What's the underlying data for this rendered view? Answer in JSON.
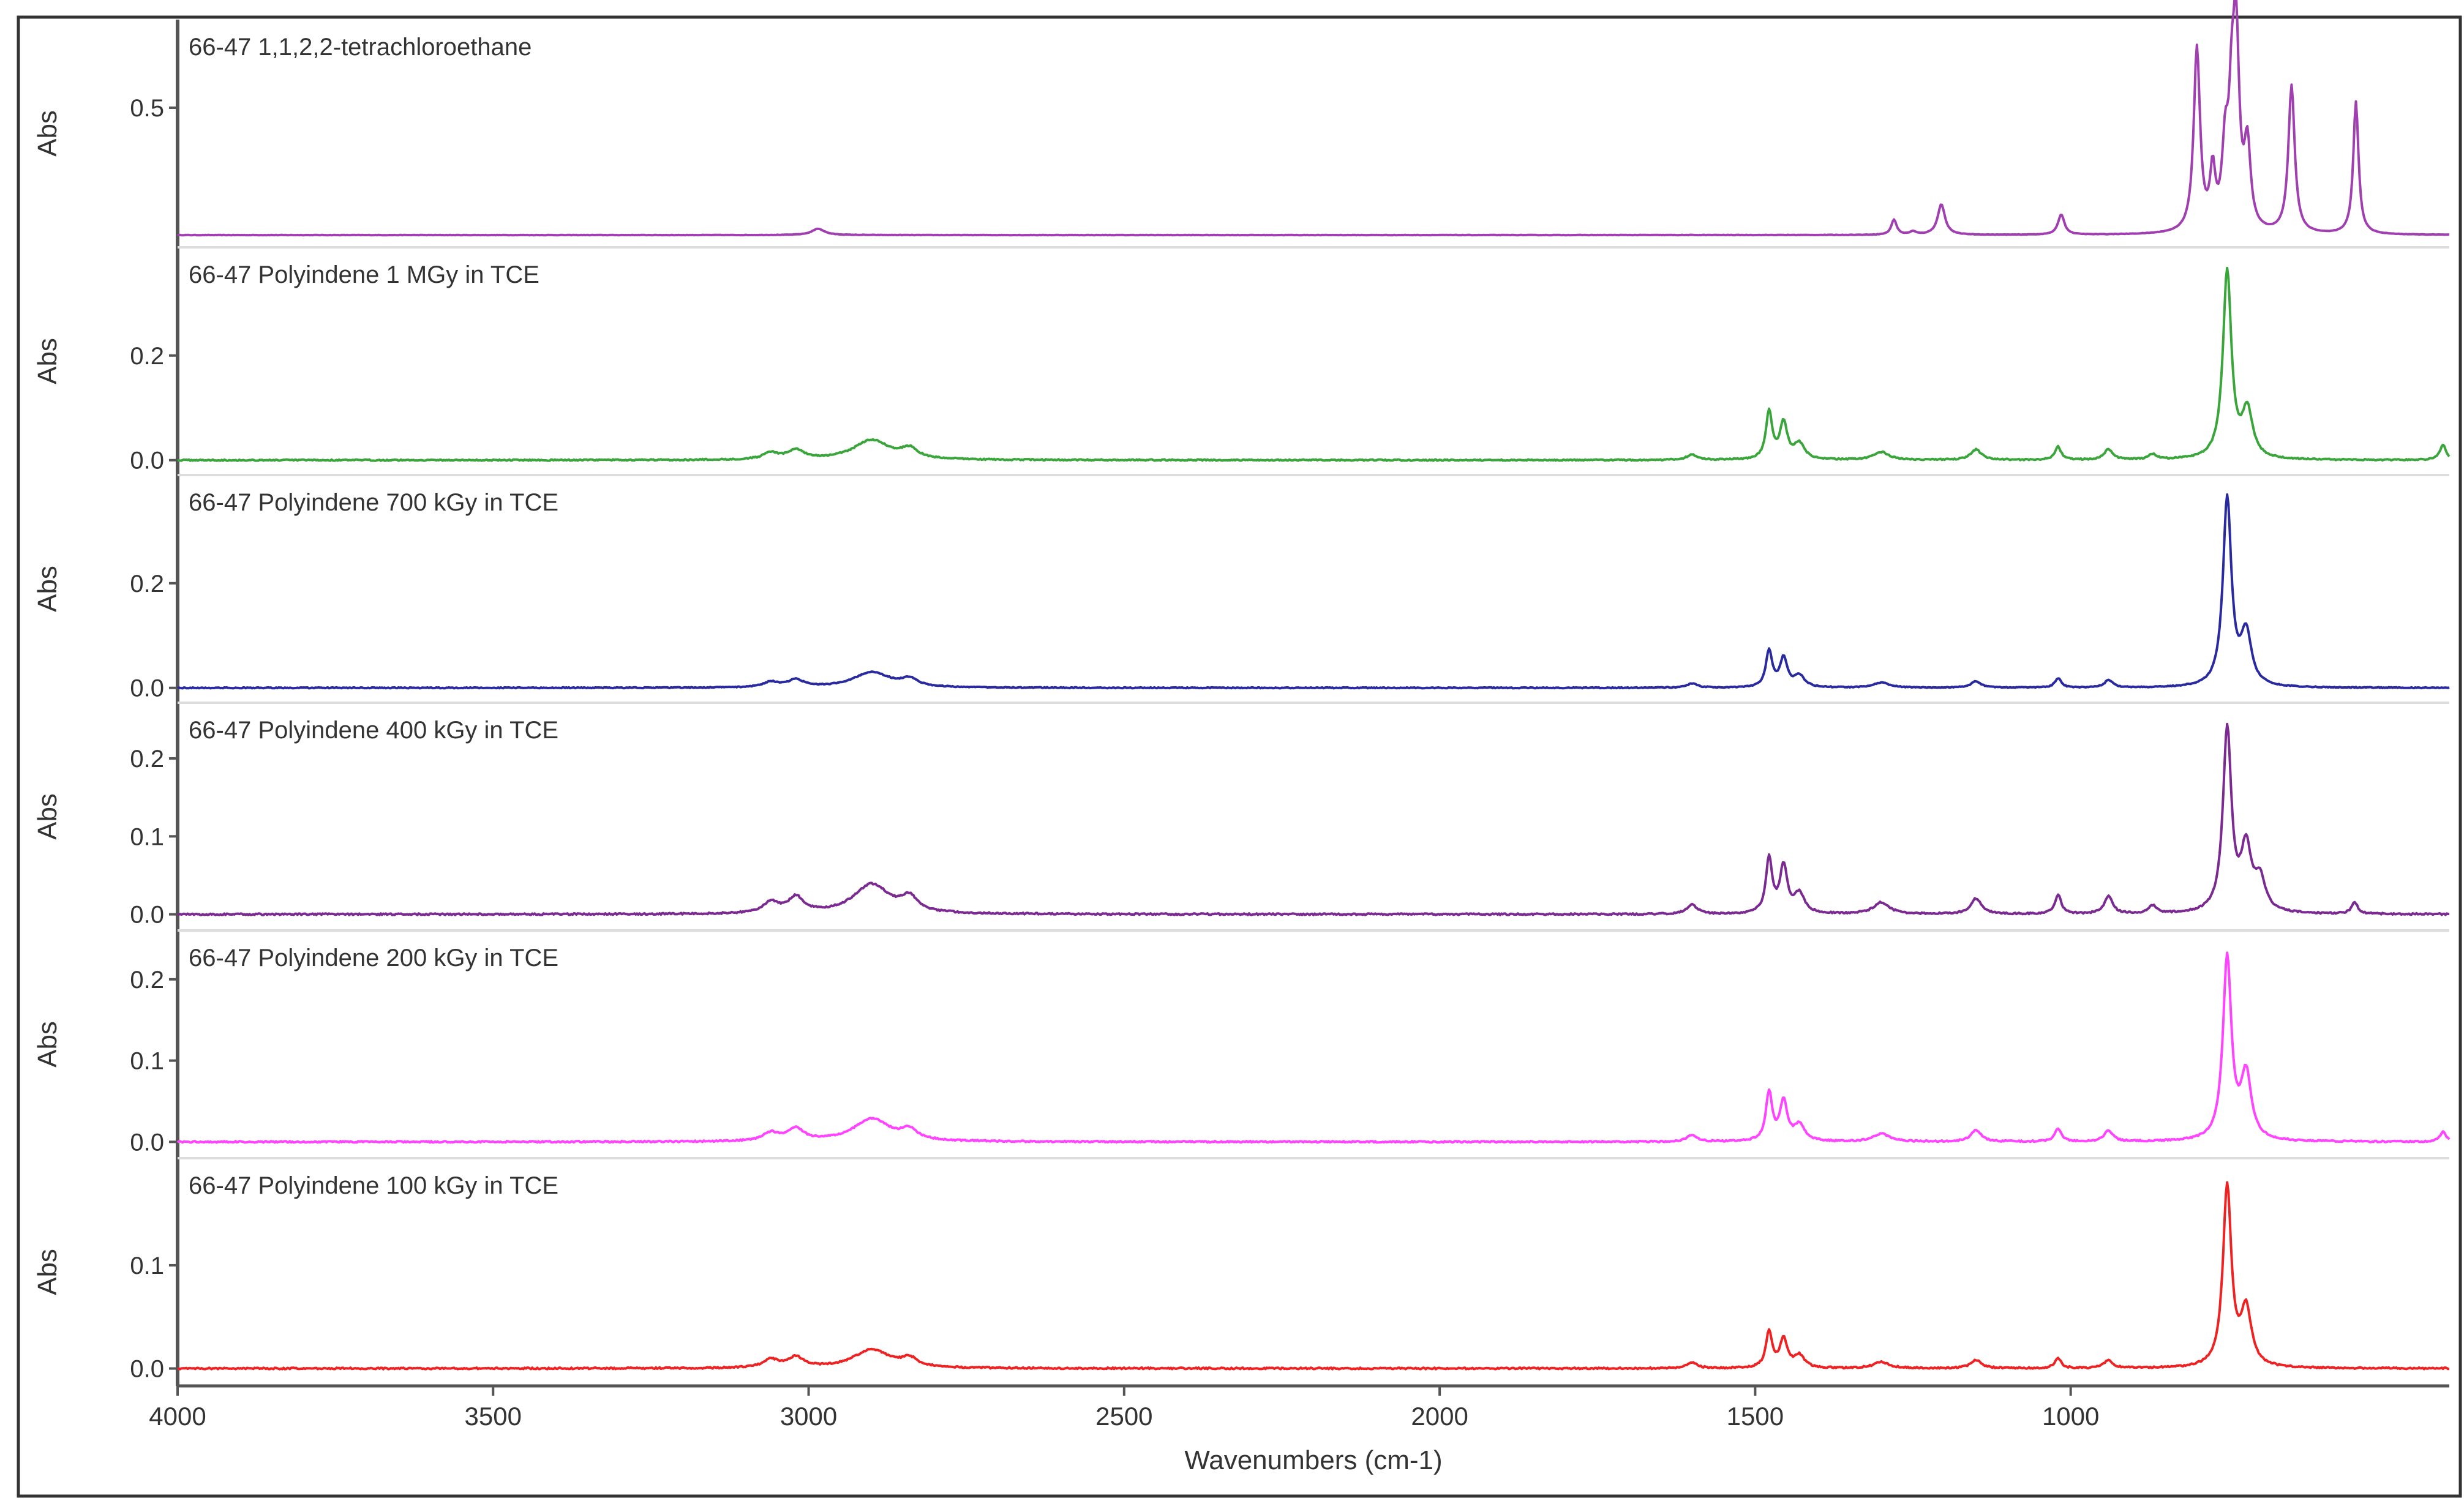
{
  "chart_data": {
    "type": "line",
    "xlabel": "Wavenumbers (cm-1)",
    "xlim": [
      4000,
      400
    ],
    "x_ticks": [
      4000,
      3500,
      3000,
      2500,
      2000,
      1500,
      1000
    ],
    "grid": false,
    "legend": "none",
    "panels": [
      {
        "title": "66-47 1,1,2,2-tetrachloroethane",
        "ylabel": "Abs",
        "color": "#a040b0",
        "ylim": [
          0,
          0.75
        ],
        "y_ticks": [
          0.5
        ],
        "baseline": 0.0,
        "noise": 0.0015,
        "peaks": [
          {
            "x": 2985,
            "height": 0.025,
            "width": 12
          },
          {
            "x": 1280,
            "height": 0.06,
            "width": 5
          },
          {
            "x": 1250,
            "height": 0.012,
            "width": 6
          },
          {
            "x": 1205,
            "height": 0.12,
            "width": 7
          },
          {
            "x": 1015,
            "height": 0.08,
            "width": 6
          },
          {
            "x": 800,
            "height": 0.72,
            "width": 6
          },
          {
            "x": 775,
            "height": 0.22,
            "width": 5
          },
          {
            "x": 755,
            "height": 0.3,
            "width": 6
          },
          {
            "x": 745,
            "height": 0.36,
            "width": 5
          },
          {
            "x": 738,
            "height": 0.75,
            "width": 6
          },
          {
            "x": 720,
            "height": 0.32,
            "width": 6
          },
          {
            "x": 650,
            "height": 0.58,
            "width": 6
          },
          {
            "x": 548,
            "height": 0.52,
            "width": 5
          }
        ]
      },
      {
        "title": "66-47 Polyindene 1 MGy in TCE",
        "ylabel": "Abs",
        "color": "#3aa53a",
        "ylim": [
          -0.005,
          0.36
        ],
        "y_ticks": [
          0.0,
          0.2
        ],
        "baseline": 0.0,
        "noise": 0.0025,
        "peaks": [
          {
            "x": 3060,
            "height": 0.012,
            "width": 15
          },
          {
            "x": 3020,
            "height": 0.018,
            "width": 15
          },
          {
            "x": 2900,
            "height": 0.038,
            "width": 35
          },
          {
            "x": 2840,
            "height": 0.018,
            "width": 15
          },
          {
            "x": 1600,
            "height": 0.01,
            "width": 10
          },
          {
            "x": 1478,
            "height": 0.09,
            "width": 6
          },
          {
            "x": 1455,
            "height": 0.07,
            "width": 7
          },
          {
            "x": 1430,
            "height": 0.03,
            "width": 10
          },
          {
            "x": 1300,
            "height": 0.015,
            "width": 15
          },
          {
            "x": 1150,
            "height": 0.02,
            "width": 10
          },
          {
            "x": 1020,
            "height": 0.025,
            "width": 6
          },
          {
            "x": 940,
            "height": 0.02,
            "width": 8
          },
          {
            "x": 870,
            "height": 0.01,
            "width": 8
          },
          {
            "x": 752,
            "height": 0.36,
            "width": 8
          },
          {
            "x": 720,
            "height": 0.09,
            "width": 10
          },
          {
            "x": 410,
            "height": 0.03,
            "width": 6
          }
        ]
      },
      {
        "title": "66-47 Polyindene 700 kGy in TCE",
        "ylabel": "Abs",
        "color": "#2a2aa0",
        "ylim": [
          -0.005,
          0.36
        ],
        "y_ticks": [
          0.0,
          0.2
        ],
        "baseline": 0.0,
        "noise": 0.0018,
        "peaks": [
          {
            "x": 3060,
            "height": 0.01,
            "width": 15
          },
          {
            "x": 3020,
            "height": 0.014,
            "width": 15
          },
          {
            "x": 2900,
            "height": 0.03,
            "width": 35
          },
          {
            "x": 2840,
            "height": 0.014,
            "width": 15
          },
          {
            "x": 1600,
            "height": 0.008,
            "width": 10
          },
          {
            "x": 1478,
            "height": 0.07,
            "width": 6
          },
          {
            "x": 1455,
            "height": 0.055,
            "width": 7
          },
          {
            "x": 1430,
            "height": 0.022,
            "width": 10
          },
          {
            "x": 1300,
            "height": 0.01,
            "width": 15
          },
          {
            "x": 1150,
            "height": 0.012,
            "width": 10
          },
          {
            "x": 1020,
            "height": 0.018,
            "width": 6
          },
          {
            "x": 940,
            "height": 0.014,
            "width": 8
          },
          {
            "x": 752,
            "height": 0.36,
            "width": 8
          },
          {
            "x": 722,
            "height": 0.1,
            "width": 10
          }
        ]
      },
      {
        "title": "66-47 Polyindene 400 kGy in TCE",
        "ylabel": "Abs",
        "color": "#7a2a90",
        "ylim": [
          -0.005,
          0.24
        ],
        "y_ticks": [
          0.0,
          0.1,
          0.2
        ],
        "baseline": 0.0,
        "noise": 0.002,
        "peaks": [
          {
            "x": 3060,
            "height": 0.014,
            "width": 15
          },
          {
            "x": 3020,
            "height": 0.02,
            "width": 15
          },
          {
            "x": 2900,
            "height": 0.038,
            "width": 35
          },
          {
            "x": 2840,
            "height": 0.018,
            "width": 15
          },
          {
            "x": 1600,
            "height": 0.012,
            "width": 10
          },
          {
            "x": 1478,
            "height": 0.07,
            "width": 6
          },
          {
            "x": 1455,
            "height": 0.06,
            "width": 7
          },
          {
            "x": 1430,
            "height": 0.025,
            "width": 10
          },
          {
            "x": 1300,
            "height": 0.015,
            "width": 15
          },
          {
            "x": 1150,
            "height": 0.02,
            "width": 10
          },
          {
            "x": 1020,
            "height": 0.025,
            "width": 6
          },
          {
            "x": 940,
            "height": 0.022,
            "width": 8
          },
          {
            "x": 870,
            "height": 0.01,
            "width": 8
          },
          {
            "x": 752,
            "height": 0.235,
            "width": 8
          },
          {
            "x": 722,
            "height": 0.08,
            "width": 10
          },
          {
            "x": 700,
            "height": 0.04,
            "width": 10
          },
          {
            "x": 550,
            "height": 0.015,
            "width": 6
          }
        ]
      },
      {
        "title": "66-47 Polyindene 200 kGy in TCE",
        "ylabel": "Abs",
        "color": "#ff44ff",
        "ylim": [
          -0.005,
          0.23
        ],
        "y_ticks": [
          0.0,
          0.1,
          0.2
        ],
        "baseline": 0.0,
        "noise": 0.0018,
        "peaks": [
          {
            "x": 3060,
            "height": 0.01,
            "width": 15
          },
          {
            "x": 3020,
            "height": 0.015,
            "width": 15
          },
          {
            "x": 2900,
            "height": 0.028,
            "width": 35
          },
          {
            "x": 2840,
            "height": 0.012,
            "width": 15
          },
          {
            "x": 1600,
            "height": 0.008,
            "width": 10
          },
          {
            "x": 1478,
            "height": 0.06,
            "width": 6
          },
          {
            "x": 1455,
            "height": 0.048,
            "width": 7
          },
          {
            "x": 1430,
            "height": 0.02,
            "width": 10
          },
          {
            "x": 1300,
            "height": 0.01,
            "width": 15
          },
          {
            "x": 1150,
            "height": 0.014,
            "width": 10
          },
          {
            "x": 1020,
            "height": 0.016,
            "width": 6
          },
          {
            "x": 940,
            "height": 0.014,
            "width": 8
          },
          {
            "x": 752,
            "height": 0.225,
            "width": 8
          },
          {
            "x": 722,
            "height": 0.08,
            "width": 10
          },
          {
            "x": 410,
            "height": 0.012,
            "width": 6
          }
        ]
      },
      {
        "title": "66-47 Polyindene 100 kGy in TCE",
        "ylabel": "Abs",
        "color": "#ee2222",
        "ylim": [
          -0.005,
          0.18
        ],
        "y_ticks": [
          0.0,
          0.1
        ],
        "baseline": 0.0,
        "noise": 0.0015,
        "peaks": [
          {
            "x": 3060,
            "height": 0.008,
            "width": 15
          },
          {
            "x": 3020,
            "height": 0.01,
            "width": 15
          },
          {
            "x": 2900,
            "height": 0.018,
            "width": 35
          },
          {
            "x": 2840,
            "height": 0.008,
            "width": 15
          },
          {
            "x": 1600,
            "height": 0.006,
            "width": 10
          },
          {
            "x": 1478,
            "height": 0.035,
            "width": 6
          },
          {
            "x": 1455,
            "height": 0.028,
            "width": 7
          },
          {
            "x": 1430,
            "height": 0.012,
            "width": 10
          },
          {
            "x": 1300,
            "height": 0.006,
            "width": 15
          },
          {
            "x": 1150,
            "height": 0.008,
            "width": 10
          },
          {
            "x": 1020,
            "height": 0.01,
            "width": 6
          },
          {
            "x": 940,
            "height": 0.008,
            "width": 8
          },
          {
            "x": 752,
            "height": 0.175,
            "width": 8
          },
          {
            "x": 722,
            "height": 0.055,
            "width": 10
          }
        ]
      }
    ]
  }
}
